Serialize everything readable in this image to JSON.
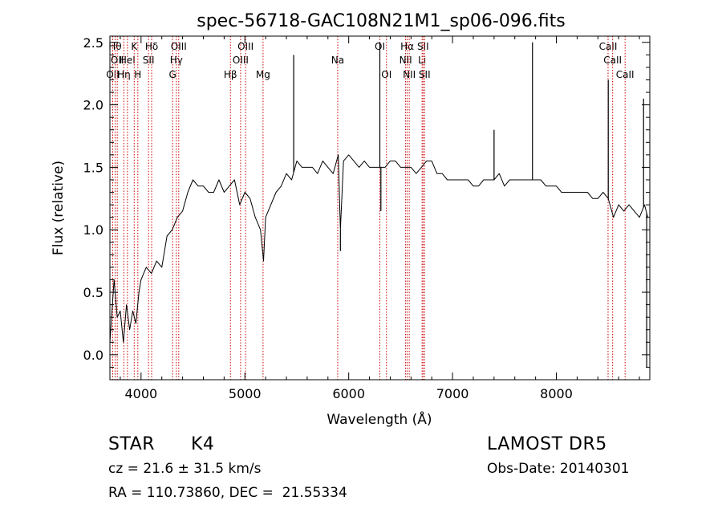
{
  "chart_data": {
    "type": "line",
    "title": "spec-56718-GAC108N21M1_sp06-096.fits",
    "xlabel": "Wavelength (Å)",
    "ylabel": "Flux (relative)",
    "xlim": [
      3700,
      8900
    ],
    "ylim": [
      -0.2,
      2.55
    ],
    "x_ticks": [
      4000,
      5000,
      6000,
      7000,
      8000
    ],
    "y_ticks": [
      0.0,
      0.5,
      1.0,
      1.5,
      2.0,
      2.5
    ],
    "x_tick_labels": [
      "4000",
      "5000",
      "6000",
      "7000",
      "8000"
    ],
    "y_tick_labels": [
      "0.0",
      "0.5",
      "1.0",
      "1.5",
      "2.0",
      "2.5"
    ],
    "grid": false,
    "line_color": "#000000",
    "marker_color": "#cc0000",
    "series": [
      {
        "x": [
          3700,
          3740,
          3770,
          3800,
          3830,
          3860,
          3890,
          3920,
          3950,
          3980,
          4000,
          4050,
          4100,
          4150,
          4200,
          4250,
          4300,
          4350,
          4400,
          4450,
          4500,
          4550,
          4600,
          4650,
          4700,
          4750,
          4800,
          4850,
          4900,
          4950,
          5000,
          5050,
          5100,
          5150,
          5180,
          5200,
          5250,
          5300,
          5350,
          5400,
          5450,
          5500,
          5550,
          5600,
          5650,
          5700,
          5750,
          5800,
          5850,
          5900,
          5920,
          5950,
          6000,
          6050,
          6100,
          6150,
          6200,
          6250,
          6300,
          6350,
          6400,
          6450,
          6500,
          6550,
          6600,
          6650,
          6700,
          6750,
          6800,
          6850,
          6900,
          6950,
          7000,
          7050,
          7100,
          7150,
          7200,
          7250,
          7300,
          7350,
          7400,
          7450,
          7500,
          7550,
          7600,
          7650,
          7700,
          7750,
          7800,
          7850,
          7900,
          7950,
          8000,
          8050,
          8100,
          8150,
          8200,
          8250,
          8300,
          8350,
          8400,
          8450,
          8500,
          8550,
          8600,
          8650,
          8700,
          8750,
          8800,
          8850,
          8880
        ],
        "y": [
          0.1,
          0.6,
          0.3,
          0.35,
          0.1,
          0.4,
          0.2,
          0.35,
          0.25,
          0.5,
          0.6,
          0.7,
          0.65,
          0.75,
          0.7,
          0.95,
          1.0,
          1.1,
          1.15,
          1.3,
          1.4,
          1.35,
          1.35,
          1.3,
          1.3,
          1.4,
          1.3,
          1.35,
          1.4,
          1.2,
          1.3,
          1.25,
          1.1,
          1.0,
          0.75,
          1.1,
          1.2,
          1.3,
          1.35,
          1.45,
          1.4,
          1.55,
          1.5,
          1.5,
          1.5,
          1.45,
          1.55,
          1.5,
          1.45,
          1.6,
          1.0,
          1.55,
          1.6,
          1.55,
          1.5,
          1.55,
          1.5,
          1.5,
          1.5,
          1.5,
          1.55,
          1.55,
          1.5,
          1.5,
          1.5,
          1.45,
          1.5,
          1.55,
          1.55,
          1.45,
          1.45,
          1.4,
          1.4,
          1.4,
          1.4,
          1.4,
          1.35,
          1.35,
          1.4,
          1.4,
          1.4,
          1.45,
          1.35,
          1.4,
          1.4,
          1.4,
          1.4,
          1.4,
          1.4,
          1.4,
          1.35,
          1.35,
          1.35,
          1.3,
          1.3,
          1.3,
          1.3,
          1.3,
          1.3,
          1.25,
          1.25,
          1.3,
          1.25,
          1.1,
          1.2,
          1.15,
          1.2,
          1.15,
          1.1,
          1.2,
          1.1
        ]
      }
    ],
    "spikes": [
      {
        "x": 5470,
        "y": 2.4
      },
      {
        "x": 5920,
        "y": 0.83
      },
      {
        "x": 6300,
        "y": 2.5
      },
      {
        "x": 6310,
        "y": 1.15
      },
      {
        "x": 7400,
        "y": 1.8
      },
      {
        "x": 7770,
        "y": 2.5
      },
      {
        "x": 8500,
        "y": 2.2
      },
      {
        "x": 8840,
        "y": 2.05
      },
      {
        "x": 8870,
        "y": -0.1
      }
    ],
    "line_markers": [
      {
        "x": 3727,
        "label": "OII",
        "row": 3
      },
      {
        "x": 3750,
        "label": "Hθ",
        "row": 1
      },
      {
        "x": 3771,
        "label": "OII",
        "row": 2
      },
      {
        "x": 3835,
        "label": "Hη",
        "row": 3
      },
      {
        "x": 3869,
        "label": "HeI",
        "row": 2
      },
      {
        "x": 3934,
        "label": "K",
        "row": 1
      },
      {
        "x": 3969,
        "label": "H",
        "row": 3
      },
      {
        "x": 4072,
        "label": "SII",
        "row": 2
      },
      {
        "x": 4102,
        "label": "Hδ",
        "row": 1
      },
      {
        "x": 4304,
        "label": "G",
        "row": 3
      },
      {
        "x": 4340,
        "label": "Hγ",
        "row": 2
      },
      {
        "x": 4363,
        "label": "OIII",
        "row": 1
      },
      {
        "x": 4861,
        "label": "Hβ",
        "row": 3
      },
      {
        "x": 4959,
        "label": "OIII",
        "row": 2
      },
      {
        "x": 5007,
        "label": "OIII",
        "row": 1
      },
      {
        "x": 5175,
        "label": "Mg",
        "row": 3
      },
      {
        "x": 5894,
        "label": "Na",
        "row": 2
      },
      {
        "x": 6300,
        "label": "OI",
        "row": 1
      },
      {
        "x": 6364,
        "label": "OI",
        "row": 3
      },
      {
        "x": 6548,
        "label": "NII",
        "row": 2
      },
      {
        "x": 6563,
        "label": "Hα",
        "row": 1
      },
      {
        "x": 6583,
        "label": "NII",
        "row": 3
      },
      {
        "x": 6707,
        "label": "Li",
        "row": 2
      },
      {
        "x": 6716,
        "label": "SII",
        "row": 1
      },
      {
        "x": 6731,
        "label": "SII",
        "row": 3
      },
      {
        "x": 8498,
        "label": "CaII",
        "row": 1
      },
      {
        "x": 8542,
        "label": "CaII",
        "row": 2
      },
      {
        "x": 8662,
        "label": "CaII",
        "row": 3
      }
    ]
  },
  "info": {
    "object_type": "STAR",
    "subclass": "K4",
    "survey": "LAMOST DR5",
    "redshift": "cz = 21.6 ± 31.5 km/s",
    "obs_date": "Obs-Date: 20140301",
    "coords": "RA = 110.73860, DEC =  21.55334"
  }
}
